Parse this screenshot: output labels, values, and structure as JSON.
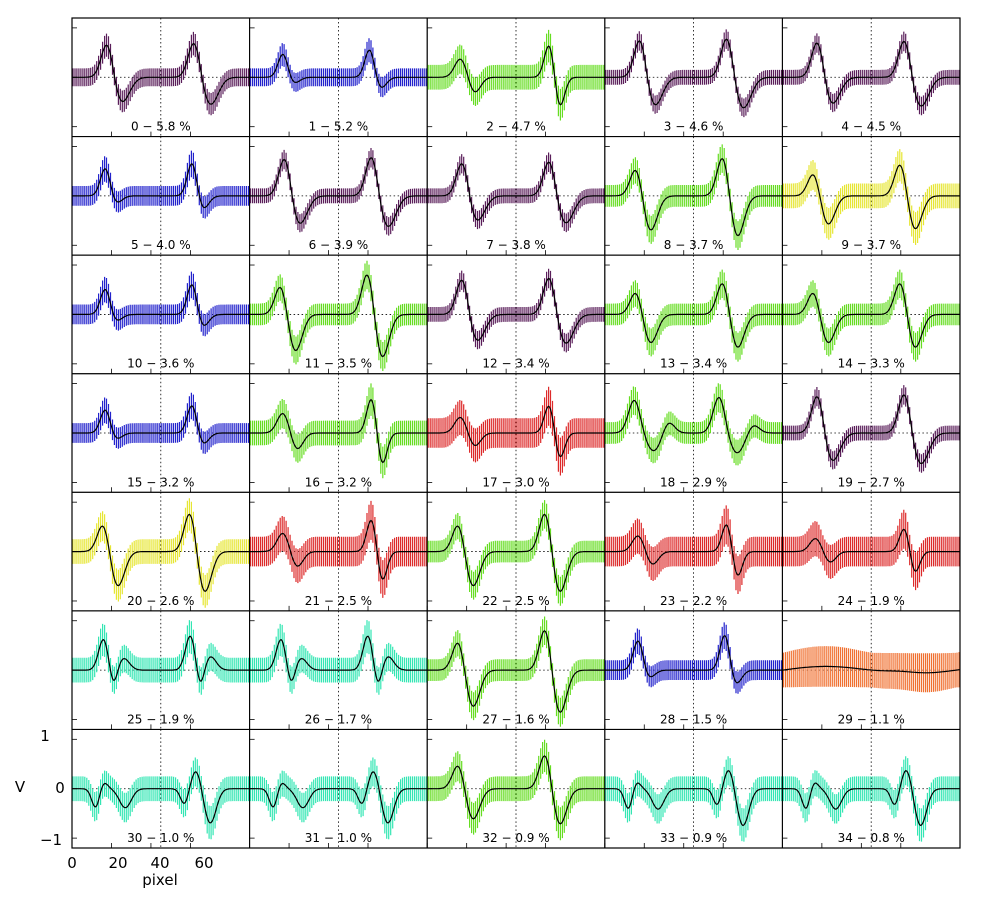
{
  "figure": {
    "y_axis_label": "V",
    "x_axis_label": "pixel",
    "y_ticks": [
      "1",
      "0",
      "−1"
    ],
    "x_ticks": [
      "0",
      "20",
      "40",
      "60"
    ],
    "gridlines": "dotted"
  },
  "chart_data": {
    "type": "line",
    "layout": "small-multiples",
    "grid": {
      "rows": 7,
      "columns": 5
    },
    "x": {
      "label": "pixel",
      "range": [
        0,
        90
      ],
      "ticks": [
        0,
        20,
        40,
        60
      ],
      "dotted_gridline_at": 45
    },
    "y": {
      "label": "V",
      "range": [
        -1.2,
        1.2
      ],
      "ticks": [
        -1,
        0,
        1
      ],
      "dotted_gridline_at": 0
    },
    "error_bars": true,
    "mean_line_color": "#000000",
    "colors": {
      "purple": "#5a1e5a",
      "blue": "#2222cc",
      "green": "#66dd22",
      "yellow": "#e6e633",
      "red": "#dd2a2a",
      "cyan": "#33e6b3",
      "orange": "#f07030"
    },
    "panels": [
      {
        "label": "0 − 5.8 %",
        "color": "purple",
        "pattern": "A",
        "amp": 0.75,
        "err": 0.18
      },
      {
        "label": "1 − 5.2 %",
        "color": "blue",
        "pattern": "B",
        "amp": 0.55,
        "err": 0.18
      },
      {
        "label": "2 − 4.7 %",
        "color": "green",
        "pattern": "C",
        "amp": 0.7,
        "err": 0.25
      },
      {
        "label": "3 − 4.6 %",
        "color": "purple",
        "pattern": "A",
        "amp": 0.85,
        "err": 0.15
      },
      {
        "label": "4 − 4.5 %",
        "color": "purple",
        "pattern": "A",
        "amp": 0.8,
        "err": 0.15
      },
      {
        "label": "5 − 4.0 %",
        "color": "blue",
        "pattern": "B",
        "amp": 0.65,
        "err": 0.2
      },
      {
        "label": "6 − 3.9 %",
        "color": "purple",
        "pattern": "A",
        "amp": 0.85,
        "err": 0.15
      },
      {
        "label": "7 − 3.8 %",
        "color": "purple",
        "pattern": "A",
        "amp": 0.75,
        "err": 0.15
      },
      {
        "label": "8 − 3.7 %",
        "color": "green",
        "pattern": "D",
        "amp": 0.85,
        "err": 0.22
      },
      {
        "label": "9 − 3.7 %",
        "color": "yellow",
        "pattern": "D",
        "amp": 0.7,
        "err": 0.25
      },
      {
        "label": "10 − 3.6 %",
        "color": "blue",
        "pattern": "B",
        "amp": 0.6,
        "err": 0.2
      },
      {
        "label": "11 − 3.5 %",
        "color": "green",
        "pattern": "D",
        "amp": 0.9,
        "err": 0.22
      },
      {
        "label": "12 − 3.4 %",
        "color": "purple",
        "pattern": "A",
        "amp": 0.8,
        "err": 0.15
      },
      {
        "label": "13 − 3.4 %",
        "color": "green",
        "pattern": "D",
        "amp": 0.7,
        "err": 0.22
      },
      {
        "label": "14 − 3.3 %",
        "color": "green",
        "pattern": "D",
        "amp": 0.7,
        "err": 0.22
      },
      {
        "label": "15 − 3.2 %",
        "color": "blue",
        "pattern": "B",
        "amp": 0.55,
        "err": 0.2
      },
      {
        "label": "16 − 3.2 %",
        "color": "green",
        "pattern": "C",
        "amp": 0.75,
        "err": 0.25
      },
      {
        "label": "17 − 3.0 %",
        "color": "red",
        "pattern": "C",
        "amp": 0.6,
        "err": 0.3
      },
      {
        "label": "18 − 2.9 %",
        "color": "green",
        "pattern": "E",
        "amp": 0.75,
        "err": 0.22
      },
      {
        "label": "19 − 2.7 %",
        "color": "purple",
        "pattern": "A",
        "amp": 0.85,
        "err": 0.15
      },
      {
        "label": "20 − 2.6 %",
        "color": "yellow",
        "pattern": "D",
        "amp": 0.85,
        "err": 0.25
      },
      {
        "label": "21 − 2.5 %",
        "color": "red",
        "pattern": "C",
        "amp": 0.7,
        "err": 0.3
      },
      {
        "label": "22 − 2.5 %",
        "color": "green",
        "pattern": "D",
        "amp": 0.85,
        "err": 0.22
      },
      {
        "label": "23 − 2.2 %",
        "color": "red",
        "pattern": "C",
        "amp": 0.6,
        "err": 0.3
      },
      {
        "label": "24 − 1.9 %",
        "color": "red",
        "pattern": "C",
        "amp": 0.5,
        "err": 0.3
      },
      {
        "label": "25 − 1.9 %",
        "color": "cyan",
        "pattern": "F",
        "amp": 0.7,
        "err": 0.25
      },
      {
        "label": "26 − 1.7 %",
        "color": "cyan",
        "pattern": "F",
        "amp": 0.7,
        "err": 0.25
      },
      {
        "label": "27 − 1.6 %",
        "color": "green",
        "pattern": "D",
        "amp": 0.9,
        "err": 0.22
      },
      {
        "label": "28 − 1.5 %",
        "color": "blue",
        "pattern": "B",
        "amp": 0.7,
        "err": 0.2
      },
      {
        "label": "29 − 1.1 %",
        "color": "orange",
        "pattern": "G",
        "amp": 0.15,
        "err": 0.35
      },
      {
        "label": "30 − 1.0 %",
        "color": "cyan",
        "pattern": "H",
        "amp": 0.7,
        "err": 0.25
      },
      {
        "label": "31 − 1.0 %",
        "color": "cyan",
        "pattern": "H",
        "amp": 0.7,
        "err": 0.25
      },
      {
        "label": "32 − 0.9 %",
        "color": "green",
        "pattern": "D",
        "amp": 0.75,
        "err": 0.25
      },
      {
        "label": "33 − 0.9 %",
        "color": "cyan",
        "pattern": "H",
        "amp": 0.75,
        "err": 0.25
      },
      {
        "label": "34 − 0.8 %",
        "color": "cyan",
        "pattern": "H",
        "amp": 0.75,
        "err": 0.25
      }
    ]
  }
}
